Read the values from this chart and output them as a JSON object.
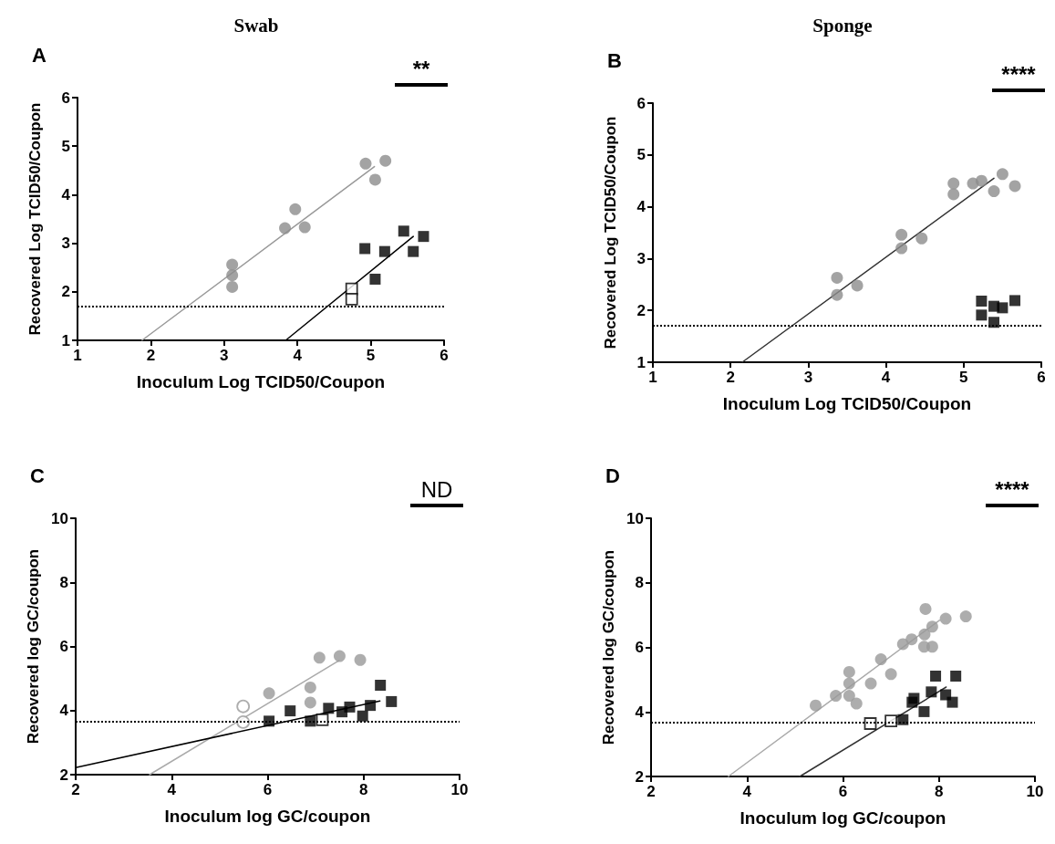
{
  "chart_data": [
    {
      "type": "scatter",
      "title": "Swab",
      "xlabel": "Inoculum Log TCID50/Coupon",
      "ylabel": "Recovered Log TCID50/Coupon",
      "annotations": [
        "A",
        "**"
      ],
      "xlim": [
        1,
        6
      ],
      "xticks": [
        1,
        2,
        3,
        4,
        5,
        6
      ],
      "ylim": [
        1,
        6
      ],
      "yticks": [
        1,
        2,
        3,
        4,
        5,
        6
      ],
      "series": [
        {
          "color": "#8c8c8c",
          "marker": "circle",
          "x": [
            3.11,
            3.11,
            3.11,
            3.83,
            3.97,
            4.1,
            4.93,
            5.06,
            5.2
          ],
          "values": [
            2.56,
            2.34,
            2.1,
            3.31,
            3.7,
            3.33,
            4.64,
            4.31,
            4.7
          ]
        },
        {
          "color": "#000000",
          "marker": "square",
          "x": [
            4.92,
            5.06,
            5.19,
            5.45,
            5.58,
            5.72
          ],
          "values": [
            2.89,
            2.26,
            2.83,
            3.25,
            2.83,
            3.14
          ]
        },
        {
          "color": "#ffffff",
          "marker": "square",
          "x": [
            4.74,
            4.74
          ],
          "values": [
            2.06,
            1.85
          ]
        },
        {
          "type": "line",
          "color": "#999999",
          "x": [
            1.88,
            5.05
          ],
          "values": [
            1,
            4.58
          ]
        },
        {
          "type": "line",
          "color": "#000000",
          "x": [
            3.84,
            5.58
          ],
          "values": [
            1,
            3.14
          ]
        }
      ],
      "ref_lines": [
        {
          "axis": "y",
          "value": 1.7,
          "line_style": "dotted",
          "color": "#000000"
        }
      ]
    },
    {
      "type": "scatter",
      "title": "Sponge",
      "xlabel": "Inoculum Log TCID50/Coupon",
      "ylabel": "Recovered Log TCID50/Coupon",
      "annotations": [
        "B",
        "****"
      ],
      "xlim": [
        1,
        6
      ],
      "xticks": [
        1,
        2,
        3,
        4,
        5,
        6
      ],
      "ylim": [
        1,
        6
      ],
      "yticks": [
        1,
        2,
        3,
        4,
        5,
        6
      ],
      "series": [
        {
          "color": "#8c8c8c",
          "marker": "circle",
          "x": [
            3.37,
            3.37,
            3.63,
            4.2,
            4.2,
            4.46,
            4.87,
            4.87,
            5.12,
            5.23,
            5.39,
            5.5,
            5.66
          ],
          "values": [
            2.63,
            2.3,
            2.48,
            3.46,
            3.2,
            3.39,
            4.45,
            4.24,
            4.45,
            4.5,
            4.3,
            4.63,
            4.4
          ]
        },
        {
          "color": "#000000",
          "marker": "square",
          "x": [
            5.23,
            5.23,
            5.39,
            5.39,
            5.5,
            5.66
          ],
          "values": [
            2.18,
            1.91,
            1.77,
            2.08,
            2.05,
            2.19
          ]
        },
        {
          "type": "line",
          "color": "#333333",
          "x": [
            2.15,
            5.39
          ],
          "values": [
            1,
            4.55
          ]
        }
      ],
      "ref_lines": [
        {
          "axis": "y",
          "value": 1.7,
          "line_style": "dotted",
          "color": "#000000"
        }
      ]
    },
    {
      "type": "scatter",
      "xlabel": "Inoculum log GC/coupon",
      "ylabel": "Recovered log GC/coupon",
      "annotations": [
        "C",
        "ND"
      ],
      "xlim": [
        2,
        10
      ],
      "xticks": [
        2,
        4,
        6,
        8,
        10
      ],
      "ylim": [
        2,
        10
      ],
      "yticks": [
        2,
        4,
        6,
        8,
        10
      ],
      "series": [
        {
          "color": "#999999",
          "marker": "circle",
          "x": [
            6.03,
            7.08,
            7.5,
            7.93,
            6.89,
            6.89
          ],
          "values": [
            4.54,
            5.65,
            5.7,
            5.58,
            4.72,
            4.25
          ]
        },
        {
          "color": "#ffffff",
          "marker": "circle",
          "x": [
            5.49,
            5.49
          ],
          "values": [
            4.13,
            3.64
          ]
        },
        {
          "color": "#000000",
          "marker": "square",
          "x": [
            6.03,
            6.47,
            6.89,
            7.27,
            7.55,
            7.71,
            7.98,
            8.14,
            8.35,
            8.58
          ],
          "values": [
            3.67,
            3.99,
            3.67,
            4.07,
            3.96,
            4.11,
            3.83,
            4.16,
            4.79,
            4.28
          ]
        },
        {
          "color": "#ffffff",
          "marker": "square",
          "x": [
            7.14
          ],
          "values": [
            3.71
          ]
        },
        {
          "type": "line",
          "color": "#aaaaaa",
          "x": [
            3.54,
            7.49
          ],
          "values": [
            2,
            5.56
          ]
        },
        {
          "type": "line",
          "color": "#000000",
          "x": [
            2,
            8.34
          ],
          "values": [
            2.22,
            4.3
          ]
        }
      ],
      "ref_lines": [
        {
          "axis": "y",
          "value": 3.67,
          "line_style": "dotted",
          "color": "#000000"
        }
      ]
    },
    {
      "type": "scatter",
      "xlabel": "Inoculum log GC/coupon",
      "ylabel": "Recovered log GC/coupon",
      "annotations": [
        "D",
        "****"
      ],
      "xlim": [
        2,
        10
      ],
      "xticks": [
        2,
        4,
        6,
        8,
        10
      ],
      "ylim": [
        2,
        10
      ],
      "yticks": [
        2,
        4,
        6,
        8,
        10
      ],
      "series": [
        {
          "color": "#999999",
          "marker": "circle",
          "x": [
            5.43,
            5.85,
            6.13,
            6.13,
            6.13,
            6.28,
            6.58,
            6.79,
            7.0,
            7.25,
            7.43,
            7.7,
            7.72,
            7.69,
            7.86,
            7.86,
            8.14,
            8.56
          ],
          "values": [
            4.2,
            4.5,
            5.24,
            4.88,
            4.5,
            4.26,
            4.88,
            5.63,
            5.17,
            6.1,
            6.25,
            6.4,
            7.19,
            6.02,
            6.02,
            6.64,
            6.89,
            6.96
          ]
        },
        {
          "color": "#000000",
          "marker": "square",
          "x": [
            7.25,
            7.44,
            7.48,
            7.69,
            7.84,
            7.93,
            8.14,
            8.28,
            8.35
          ],
          "values": [
            3.76,
            4.3,
            4.42,
            4.01,
            4.62,
            5.11,
            4.53,
            4.3,
            5.11
          ]
        },
        {
          "color": "#ffffff",
          "marker": "square",
          "x": [
            6.57,
            7.0
          ],
          "values": [
            3.64,
            3.72
          ]
        },
        {
          "type": "line",
          "color": "#aaaaaa",
          "x": [
            3.61,
            8.01
          ],
          "values": [
            2,
            6.84
          ]
        },
        {
          "type": "line",
          "color": "#333333",
          "x": [
            5.1,
            8.15
          ],
          "values": [
            2,
            4.77
          ]
        }
      ],
      "ref_lines": [
        {
          "axis": "y",
          "value": 3.67,
          "line_style": "dotted",
          "color": "#000000"
        }
      ]
    }
  ]
}
